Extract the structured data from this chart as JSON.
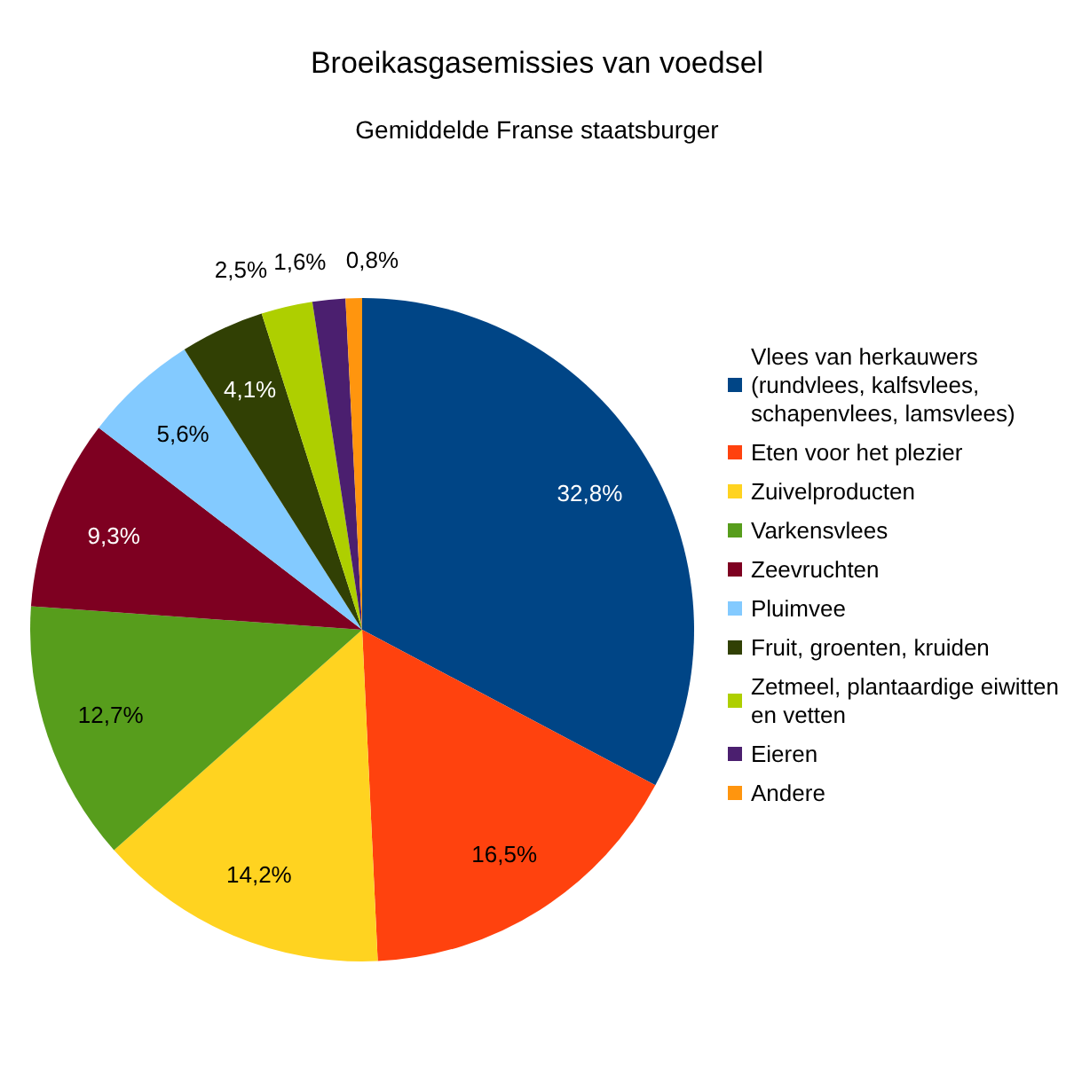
{
  "chart_data": {
    "type": "pie",
    "title": "Broeikasgasemissies van voedsel",
    "subtitle": "Gemiddelde Franse staatsburger",
    "categories": [
      "Vlees van herkauwers (rundvlees, kalfsvlees, schapenvlees, lamsvlees)",
      "Eten voor het plezier",
      "Zuivelproducten",
      "Varkensvlees",
      "Zeevruchten",
      "Pluimvee",
      "Fruit, groenten, kruiden",
      "Zetmeel, plantaardige eiwitten en vetten",
      "Eieren",
      "Andere"
    ],
    "values": [
      32.8,
      16.5,
      14.2,
      12.7,
      9.3,
      5.6,
      4.1,
      2.5,
      1.6,
      0.8
    ],
    "colors": [
      "#004586",
      "#ff420e",
      "#ffd320",
      "#579d1c",
      "#7e0021",
      "#83caff",
      "#314004",
      "#aecf00",
      "#4b1f6f",
      "#ff950e"
    ],
    "value_labels": [
      "32,8%",
      "16,5%",
      "14,2%",
      "12,7%",
      "9,3%",
      "5,6%",
      "4,1%",
      "2,5%",
      "1,6%",
      "0,8%"
    ],
    "legend": "right"
  }
}
